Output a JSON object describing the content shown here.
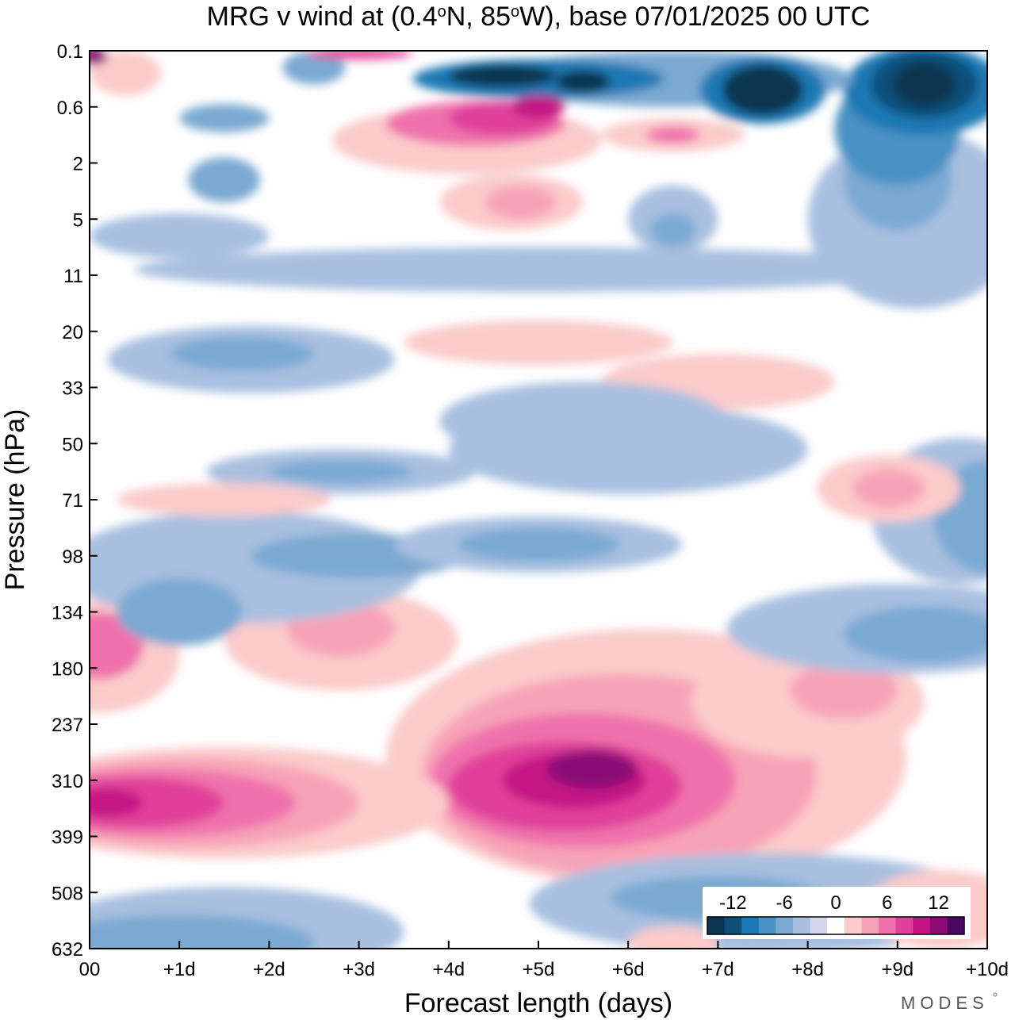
{
  "chart_data": {
    "type": "heatmap",
    "title": "MRG v wind at (0.4°N, 85°W),  base 07/01/2025  00 UTC",
    "title_parts": {
      "prefix": "MRG v wind at (0.4",
      "deg1": "o",
      "mid": "N, 85",
      "deg2": "o",
      "suffix": "W),  base 07/01/2025  00 UTC"
    },
    "xlabel": "Forecast length (days)",
    "ylabel": "Pressure (hPa)",
    "x_ticks": [
      "00",
      "+1d",
      "+2d",
      "+3d",
      "+4d",
      "+5d",
      "+6d",
      "+7d",
      "+8d",
      "+9d",
      "+10d"
    ],
    "xlim": [
      0,
      10
    ],
    "y_ticks": [
      "0.1",
      "0.6",
      "2",
      "5",
      "11",
      "20",
      "33",
      "50",
      "71",
      "98",
      "134",
      "180",
      "237",
      "310",
      "399",
      "508",
      "632"
    ],
    "y_scale": "pressure levels, top to bottom",
    "grid": false,
    "colorbar": {
      "placement": "bottom-right, inside plot",
      "tick_labels": [
        "-12",
        "-6",
        "0",
        "6",
        "12"
      ],
      "tick_values": [
        -12,
        -6,
        0,
        6,
        12
      ],
      "levels": [
        -14,
        -12,
        -10,
        -8,
        -6,
        -4,
        -2,
        0,
        2,
        4,
        6,
        8,
        10,
        12,
        14
      ],
      "colors": [
        "#08354f",
        "#0c507a",
        "#1a78b4",
        "#4a92c4",
        "#7aa9d2",
        "#a8bfe0",
        "#d3d6ea",
        "#ffffff",
        "#fbcbcb",
        "#f7a3b7",
        "#ef72ac",
        "#e0409a",
        "#c41585",
        "#8a0b76",
        "#4d0563"
      ]
    },
    "regions": [
      {
        "x": 6.2,
        "y": 12.6,
        "rx": 2.9,
        "ry": 2.3,
        "value": 3
      },
      {
        "x": 5.9,
        "y": 12.9,
        "rx": 2.2,
        "ry": 1.8,
        "value": 5
      },
      {
        "x": 5.5,
        "y": 13.0,
        "rx": 1.7,
        "ry": 1.2,
        "value": 7
      },
      {
        "x": 5.3,
        "y": 13.1,
        "rx": 1.3,
        "ry": 0.8,
        "value": 9
      },
      {
        "x": 5.4,
        "y": 13.0,
        "rx": 0.8,
        "ry": 0.5,
        "value": 11
      },
      {
        "x": 5.6,
        "y": 12.8,
        "rx": 0.5,
        "ry": 0.35,
        "value": 13
      },
      {
        "x": 8.0,
        "y": 11.6,
        "rx": 1.3,
        "ry": 1.0,
        "value": 3
      },
      {
        "x": 8.4,
        "y": 11.4,
        "rx": 0.6,
        "ry": 0.5,
        "value": 5
      },
      {
        "x": 1.5,
        "y": 13.4,
        "rx": 2.5,
        "ry": 1.0,
        "value": 3
      },
      {
        "x": 1.1,
        "y": 13.4,
        "rx": 1.9,
        "ry": 0.8,
        "value": 5
      },
      {
        "x": 0.8,
        "y": 13.4,
        "rx": 1.5,
        "ry": 0.6,
        "value": 7
      },
      {
        "x": 0.5,
        "y": 13.4,
        "rx": 1.0,
        "ry": 0.45,
        "value": 9
      },
      {
        "x": 0.2,
        "y": 13.4,
        "rx": 0.4,
        "ry": 0.25,
        "value": 11
      },
      {
        "x": 0.1,
        "y": 10.8,
        "rx": 0.9,
        "ry": 1.0,
        "value": 3
      },
      {
        "x": 0.1,
        "y": 10.6,
        "rx": 0.5,
        "ry": 0.6,
        "value": 7
      },
      {
        "x": 2.8,
        "y": 10.5,
        "rx": 1.3,
        "ry": 0.9,
        "value": 3
      },
      {
        "x": 2.8,
        "y": 10.3,
        "rx": 0.6,
        "ry": 0.5,
        "value": 5
      },
      {
        "x": 1.7,
        "y": 9.2,
        "rx": 2.0,
        "ry": 1.0,
        "value": -3
      },
      {
        "x": 1.0,
        "y": 10.0,
        "rx": 0.7,
        "ry": 0.6,
        "value": -5
      },
      {
        "x": 3.0,
        "y": 9.0,
        "rx": 1.2,
        "ry": 0.4,
        "value": -5
      },
      {
        "x": 5.0,
        "y": 8.8,
        "rx": 1.6,
        "ry": 0.5,
        "value": -3
      },
      {
        "x": 5.0,
        "y": 8.8,
        "rx": 0.9,
        "ry": 0.3,
        "value": -5
      },
      {
        "x": 9.0,
        "y": 10.3,
        "rx": 1.9,
        "ry": 0.8,
        "value": -3
      },
      {
        "x": 9.3,
        "y": 10.4,
        "rx": 0.9,
        "ry": 0.5,
        "value": -5
      },
      {
        "x": 9.7,
        "y": 8.2,
        "rx": 1.0,
        "ry": 1.3,
        "value": -3
      },
      {
        "x": 10.0,
        "y": 8.3,
        "rx": 0.6,
        "ry": 1.0,
        "value": -5
      },
      {
        "x": 8.9,
        "y": 7.8,
        "rx": 0.8,
        "ry": 0.6,
        "value": 3
      },
      {
        "x": 8.9,
        "y": 7.8,
        "rx": 0.4,
        "ry": 0.35,
        "value": 5
      },
      {
        "x": 6.0,
        "y": 7.1,
        "rx": 2.0,
        "ry": 0.8,
        "value": -3
      },
      {
        "x": 5.5,
        "y": 6.6,
        "rx": 0.6,
        "ry": 0.3,
        "value": -5
      },
      {
        "x": 2.8,
        "y": 7.5,
        "rx": 1.5,
        "ry": 0.4,
        "value": -3
      },
      {
        "x": 2.8,
        "y": 7.5,
        "rx": 0.8,
        "ry": 0.2,
        "value": -5
      },
      {
        "x": 1.5,
        "y": 8.0,
        "rx": 1.2,
        "ry": 0.3,
        "value": 3
      },
      {
        "x": 7.0,
        "y": 5.9,
        "rx": 1.3,
        "ry": 0.5,
        "value": 3
      },
      {
        "x": 1.8,
        "y": 5.5,
        "rx": 1.6,
        "ry": 0.6,
        "value": -3
      },
      {
        "x": 1.7,
        "y": 5.4,
        "rx": 0.8,
        "ry": 0.3,
        "value": -5
      },
      {
        "x": 5.0,
        "y": 5.2,
        "rx": 1.5,
        "ry": 0.4,
        "value": 3
      },
      {
        "x": 5.5,
        "y": 6.6,
        "rx": 1.6,
        "ry": 0.7,
        "value": -3
      },
      {
        "x": 5.0,
        "y": 3.9,
        "rx": 4.5,
        "ry": 0.4,
        "value": -3
      },
      {
        "x": 1.0,
        "y": 3.3,
        "rx": 1.0,
        "ry": 0.4,
        "value": -3
      },
      {
        "x": 9.2,
        "y": 3.0,
        "rx": 1.2,
        "ry": 1.6,
        "value": -3
      },
      {
        "x": 9.0,
        "y": 2.3,
        "rx": 0.6,
        "ry": 0.9,
        "value": -5
      },
      {
        "x": 9.0,
        "y": 1.4,
        "rx": 0.7,
        "ry": 1.0,
        "value": -7
      },
      {
        "x": 9.3,
        "y": 0.7,
        "rx": 0.9,
        "ry": 0.8,
        "value": -9
      },
      {
        "x": 9.3,
        "y": 0.6,
        "rx": 0.6,
        "ry": 0.6,
        "value": -11
      },
      {
        "x": 9.3,
        "y": 0.6,
        "rx": 0.35,
        "ry": 0.4,
        "value": -13
      },
      {
        "x": 6.5,
        "y": 0.5,
        "rx": 2.0,
        "ry": 0.5,
        "value": -5
      },
      {
        "x": 5.0,
        "y": 0.5,
        "rx": 1.4,
        "ry": 0.35,
        "value": -9
      },
      {
        "x": 4.6,
        "y": 0.45,
        "rx": 0.6,
        "ry": 0.2,
        "value": -13
      },
      {
        "x": 5.5,
        "y": 0.55,
        "rx": 0.3,
        "ry": 0.2,
        "value": -13
      },
      {
        "x": 7.5,
        "y": 0.7,
        "rx": 0.7,
        "ry": 0.6,
        "value": -9
      },
      {
        "x": 7.5,
        "y": 0.7,
        "rx": 0.45,
        "ry": 0.45,
        "value": -13
      },
      {
        "x": 4.2,
        "y": 1.6,
        "rx": 1.5,
        "ry": 0.6,
        "value": 3
      },
      {
        "x": 4.3,
        "y": 1.3,
        "rx": 1.0,
        "ry": 0.4,
        "value": 7
      },
      {
        "x": 4.6,
        "y": 1.2,
        "rx": 0.6,
        "ry": 0.3,
        "value": 9
      },
      {
        "x": 5.0,
        "y": 1.0,
        "rx": 0.3,
        "ry": 0.2,
        "value": 11
      },
      {
        "x": 4.7,
        "y": 2.7,
        "rx": 0.8,
        "ry": 0.5,
        "value": 3
      },
      {
        "x": 4.8,
        "y": 2.7,
        "rx": 0.4,
        "ry": 0.3,
        "value": 5
      },
      {
        "x": 6.5,
        "y": 1.5,
        "rx": 0.8,
        "ry": 0.3,
        "value": 3
      },
      {
        "x": 6.5,
        "y": 1.5,
        "rx": 0.3,
        "ry": 0.15,
        "value": 7
      },
      {
        "x": 1.5,
        "y": 1.2,
        "rx": 0.5,
        "ry": 0.25,
        "value": -5
      },
      {
        "x": 1.5,
        "y": 2.3,
        "rx": 0.4,
        "ry": 0.4,
        "value": -5
      },
      {
        "x": 2.5,
        "y": 0.3,
        "rx": 0.35,
        "ry": 0.3,
        "value": -5
      },
      {
        "x": 0.4,
        "y": 0.4,
        "rx": 0.4,
        "ry": 0.4,
        "value": 3
      },
      {
        "x": 0.05,
        "y": 0.1,
        "rx": 0.15,
        "ry": 0.15,
        "value": 13
      },
      {
        "x": 3.0,
        "y": 0.05,
        "rx": 0.6,
        "ry": 0.1,
        "value": 9
      },
      {
        "x": 6.5,
        "y": 3.0,
        "rx": 0.5,
        "ry": 0.6,
        "value": -3
      },
      {
        "x": 6.5,
        "y": 3.2,
        "rx": 0.25,
        "ry": 0.3,
        "value": -5
      },
      {
        "x": 7.5,
        "y": 15.2,
        "rx": 2.6,
        "ry": 0.9,
        "value": -3
      },
      {
        "x": 7.0,
        "y": 15.1,
        "rx": 1.2,
        "ry": 0.4,
        "value": -5
      },
      {
        "x": 1.5,
        "y": 15.7,
        "rx": 2.0,
        "ry": 0.8,
        "value": -3
      },
      {
        "x": 1.0,
        "y": 15.9,
        "rx": 1.5,
        "ry": 0.5,
        "value": -5
      },
      {
        "x": 9.5,
        "y": 15.3,
        "rx": 0.9,
        "ry": 0.7,
        "value": 3
      },
      {
        "x": 6.5,
        "y": 15.9,
        "rx": 0.5,
        "ry": 0.3,
        "value": 3
      }
    ]
  }
}
